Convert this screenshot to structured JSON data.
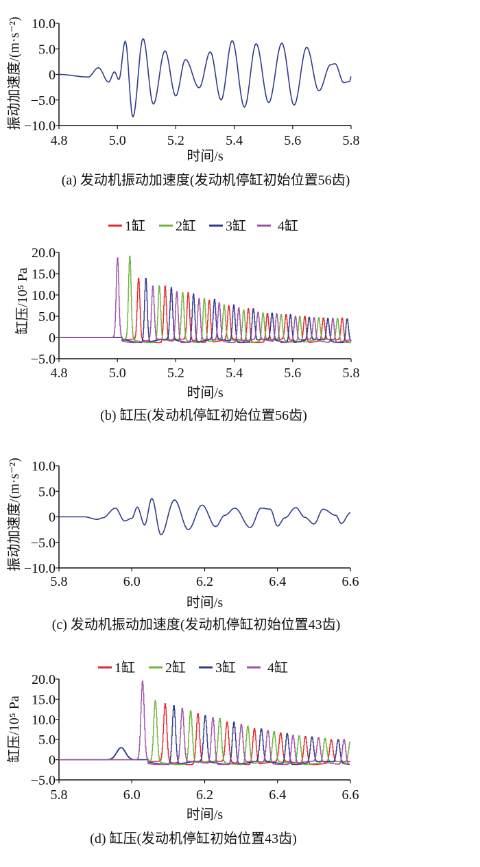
{
  "chart_data": [
    {
      "type": "line",
      "caption": "(a) 发动机振动加速度(发动机停缸初始位置56齿)",
      "xlabel": "时间/s",
      "ylabel": "振动加速度/(m·s⁻²)",
      "xlim": [
        4.8,
        5.8
      ],
      "ylim": [
        -10,
        10
      ],
      "xticks": [
        "4.8",
        "5.0",
        "5.2",
        "5.4",
        "5.6",
        "5.8"
      ],
      "yticks": [
        "10.0",
        "5.0",
        "0",
        "−5.0",
        "−10.0"
      ],
      "color": "#2e3a8c",
      "series": [
        {
          "name": "振动加速度",
          "points": [
            [
              4.8,
              0
            ],
            [
              4.9,
              -0.5
            ],
            [
              4.935,
              1.3
            ],
            [
              4.97,
              -1.5
            ],
            [
              4.99,
              0.5
            ],
            [
              5.005,
              -1
            ],
            [
              5.027,
              6.5
            ],
            [
              5.053,
              -8.3
            ],
            [
              5.088,
              7
            ],
            [
              5.123,
              -5.8
            ],
            [
              5.163,
              4.6
            ],
            [
              5.2,
              -4.2
            ],
            [
              5.233,
              2.9
            ],
            [
              5.28,
              -2.6
            ],
            [
              5.318,
              4.4
            ],
            [
              5.355,
              -5
            ],
            [
              5.393,
              6.6
            ],
            [
              5.435,
              -6.4
            ],
            [
              5.475,
              6
            ],
            [
              5.518,
              -5.5
            ],
            [
              5.563,
              6.1
            ],
            [
              5.605,
              -6
            ],
            [
              5.648,
              5.3
            ],
            [
              5.69,
              -3.2
            ],
            [
              5.73,
              1.9
            ],
            [
              5.745,
              2.1
            ],
            [
              5.775,
              -1.6
            ],
            [
              5.795,
              -1.4
            ],
            [
              5.8,
              -0.4
            ]
          ]
        }
      ]
    },
    {
      "type": "line",
      "caption": "(b) 缸压(发动机停缸初始位置56齿)",
      "xlabel": "时间/s",
      "ylabel": "缸压/10⁵ Pa",
      "xlim": [
        4.8,
        5.8
      ],
      "ylim": [
        -5,
        20
      ],
      "xticks": [
        "4.8",
        "5.0",
        "5.2",
        "5.4",
        "5.6",
        "5.8"
      ],
      "yticks": [
        "20.0",
        "15.0",
        "10.0",
        "5.0",
        "0",
        "−5.0"
      ],
      "legend": "top",
      "series": [
        {
          "name": "1缸",
          "color": "#e8262a",
          "peaks": [
            [
              5.072,
              14
            ],
            [
              5.163,
              12.2
            ],
            [
              5.242,
              10.6
            ],
            [
              5.314,
              8.8
            ],
            [
              5.381,
              7.5
            ],
            [
              5.448,
              6.8
            ],
            [
              5.513,
              5.7
            ],
            [
              5.577,
              5.4
            ],
            [
              5.641,
              5
            ],
            [
              5.705,
              4.6
            ],
            [
              5.769,
              4.6
            ]
          ]
        },
        {
          "name": "2缸",
          "color": "#6cb43a",
          "peaks": [
            [
              5.042,
              19.2
            ],
            [
              5.143,
              12.2
            ],
            [
              5.223,
              10.6
            ],
            [
              5.297,
              9.2
            ],
            [
              5.365,
              7.7
            ],
            [
              5.432,
              6.5
            ],
            [
              5.498,
              5.8
            ],
            [
              5.56,
              5.4
            ],
            [
              5.624,
              5
            ],
            [
              5.689,
              4.7
            ],
            [
              5.753,
              4.5
            ]
          ]
        },
        {
          "name": "3缸",
          "color": "#2e3a8c",
          "peaks": [
            [
              5.097,
              14
            ],
            [
              5.184,
              11.8
            ],
            [
              5.26,
              10.3
            ],
            [
              5.332,
              9
            ],
            [
              5.398,
              7.7
            ],
            [
              5.465,
              6.8
            ],
            [
              5.529,
              5.8
            ],
            [
              5.592,
              5.4
            ],
            [
              5.656,
              4.8
            ],
            [
              5.72,
              4.5
            ],
            [
              5.786,
              4.4
            ]
          ]
        },
        {
          "name": "4缸",
          "color": "#a050a8",
          "peaks": [
            [
              5.0,
              18.8
            ],
            [
              5.121,
              12.2
            ],
            [
              5.203,
              10.8
            ],
            [
              5.279,
              9.2
            ],
            [
              5.348,
              8.2
            ],
            [
              5.415,
              7
            ],
            [
              5.481,
              6
            ],
            [
              5.545,
              5.6
            ],
            [
              5.609,
              5
            ],
            [
              5.673,
              4.7
            ],
            [
              5.737,
              4.5
            ]
          ]
        }
      ]
    },
    {
      "type": "line",
      "caption": "(c) 发动机振动加速度(发动机停缸初始位置43齿)",
      "xlabel": "时间/s",
      "ylabel": "振动加速度/(m·s⁻²)",
      "xlim": [
        5.8,
        6.6
      ],
      "ylim": [
        -10,
        10
      ],
      "xticks": [
        "5.8",
        "6.0",
        "6.2",
        "6.4",
        "6.6"
      ],
      "yticks": [
        "10.0",
        "5.0",
        "0",
        "−5.0",
        "−10.0"
      ],
      "color": "#2e3a8c",
      "series": [
        {
          "name": "振动加速度",
          "points": [
            [
              5.8,
              0
            ],
            [
              5.87,
              0
            ],
            [
              5.905,
              -0.5
            ],
            [
              5.92,
              -0.2
            ],
            [
              5.955,
              1.7
            ],
            [
              5.98,
              -0.8
            ],
            [
              6.0,
              -0.3
            ],
            [
              6.015,
              1.9
            ],
            [
              6.035,
              -1.6
            ],
            [
              6.055,
              3.6
            ],
            [
              6.08,
              -3.5
            ],
            [
              6.117,
              3.3
            ],
            [
              6.155,
              -2.5
            ],
            [
              6.193,
              2.3
            ],
            [
              6.23,
              -1.9
            ],
            [
              6.255,
              0.3
            ],
            [
              6.283,
              1.7
            ],
            [
              6.325,
              -2.1
            ],
            [
              6.355,
              1.7
            ],
            [
              6.38,
              1.5
            ],
            [
              6.4,
              -1.8
            ],
            [
              6.42,
              -0.2
            ],
            [
              6.45,
              1.8
            ],
            [
              6.475,
              -0.1
            ],
            [
              6.5,
              -1.4
            ],
            [
              6.525,
              1.5
            ],
            [
              6.56,
              0.3
            ],
            [
              6.575,
              -1.3
            ],
            [
              6.6,
              0.8
            ]
          ]
        }
      ]
    },
    {
      "type": "line",
      "caption": "(d) 缸压(发动机停缸初始位置43齿)",
      "xlabel": "时间/s",
      "ylabel": "缸压/10⁵ Pa",
      "xlim": [
        5.8,
        6.6
      ],
      "ylim": [
        -5,
        20
      ],
      "xticks": [
        "5.8",
        "6.0",
        "6.2",
        "6.4",
        "6.6"
      ],
      "yticks": [
        "20.0",
        "15.0",
        "10.0",
        "5.0",
        "0",
        "−5.0"
      ],
      "legend": "top",
      "series": [
        {
          "name": "1缸",
          "color": "#e8262a",
          "peaks": [
            [
              6.091,
              14
            ],
            [
              6.181,
              11.5
            ],
            [
              6.261,
              9.4
            ],
            [
              6.336,
              7.8
            ],
            [
              6.408,
              6.7
            ],
            [
              6.476,
              5.8
            ],
            [
              6.547,
              5
            ]
          ]
        },
        {
          "name": "2缸",
          "color": "#6cb43a",
          "peaks": [
            [
              6.064,
              14.7
            ],
            [
              6.161,
              12.2
            ],
            [
              6.241,
              10.3
            ],
            [
              6.318,
              8.4
            ],
            [
              6.39,
              7
            ],
            [
              6.459,
              6
            ],
            [
              6.53,
              5.3
            ],
            [
              6.599,
              4.5
            ]
          ]
        },
        {
          "name": "3缸",
          "color": "#2e3a8c",
          "peaks": [
            [
              6.115,
              13.5
            ],
            [
              6.201,
              11
            ],
            [
              6.28,
              9.4
            ],
            [
              6.355,
              7.7
            ],
            [
              6.426,
              6.5
            ],
            [
              6.494,
              5.7
            ],
            [
              6.566,
              5
            ]
          ],
          "broad_peaks": [
            [
              5.97,
              3.0
            ]
          ]
        },
        {
          "name": "4缸",
          "color": "#a050a8",
          "peaks": [
            [
              6.029,
              19.5
            ],
            [
              6.138,
              12.8
            ],
            [
              6.222,
              10.5
            ],
            [
              6.3,
              8.8
            ],
            [
              6.373,
              7.3
            ],
            [
              6.442,
              6.1
            ],
            [
              6.512,
              5.5
            ],
            [
              6.582,
              5
            ]
          ]
        }
      ]
    }
  ]
}
